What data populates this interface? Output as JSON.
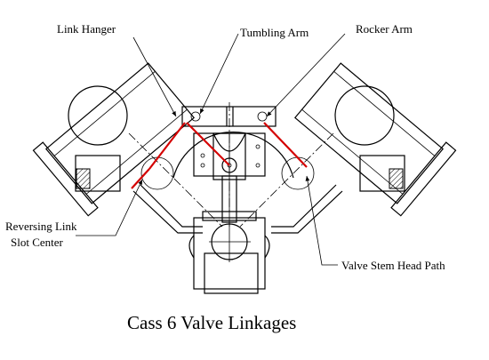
{
  "labels": {
    "link_hanger": "Link Hanger",
    "tumbling_arm": "Tumbling Arm",
    "rocker_arm": "Rocker Arm",
    "reversing_link_line1": "Reversing Link",
    "reversing_link_line2": "Slot Center",
    "valve_stem_head_path": "Valve Stem Head Path"
  },
  "caption": "Cass 6 Valve Linkages",
  "colors": {
    "linkage_highlight": "#d40000",
    "lines": "#000000",
    "background": "#ffffff"
  }
}
